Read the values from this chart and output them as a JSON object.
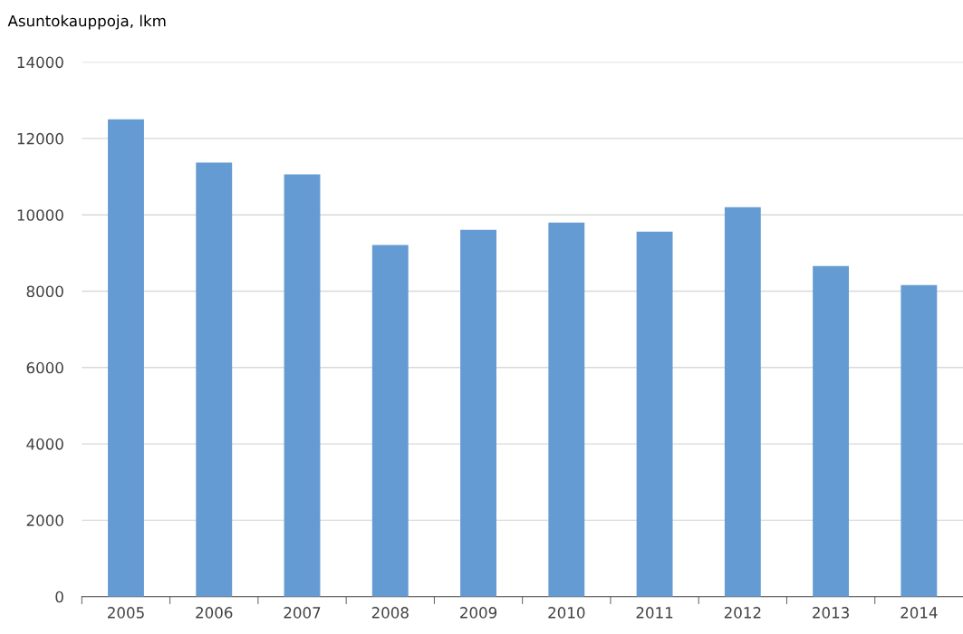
{
  "chart_data": {
    "type": "bar",
    "ylabel": "Asuntokauppoja, lkm",
    "categories": [
      "2005",
      "2006",
      "2007",
      "2008",
      "2009",
      "2010",
      "2011",
      "2012",
      "2013",
      "2014"
    ],
    "values": [
      12500,
      11370,
      11060,
      9210,
      9610,
      9800,
      9560,
      10200,
      8660,
      8160
    ],
    "color": "#659bd3",
    "ylim": [
      0,
      14000
    ],
    "yticks": [
      0,
      2000,
      4000,
      6000,
      8000,
      10000,
      12000,
      14000
    ],
    "grid": "y"
  }
}
